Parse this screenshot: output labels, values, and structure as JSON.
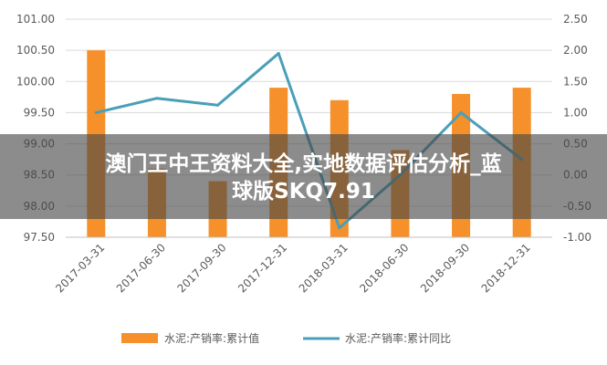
{
  "overlay": {
    "line1": "澳门王中王资料大全,实地数据评估分析_蓝",
    "line2": "球版SKQ7.91"
  },
  "chart_data": {
    "type": "bar",
    "categories": [
      "2017-03-31",
      "2017-06-30",
      "2017-09-30",
      "2017-12-31",
      "2018-03-31",
      "2018-06-30",
      "2018-09-30",
      "2018-12-31"
    ],
    "series": [
      {
        "name": "水泥:产销率:累计值",
        "type": "bar",
        "axis": "left",
        "color": "#f5902a",
        "values": [
          100.5,
          98.6,
          98.4,
          99.9,
          99.7,
          98.9,
          99.8,
          99.9
        ]
      },
      {
        "name": "水泥:产销率:累计同比",
        "type": "line",
        "axis": "right",
        "color": "#4a9fb8",
        "values": [
          1.0,
          1.23,
          1.12,
          1.95,
          -0.85,
          0.0,
          1.0,
          0.25
        ]
      }
    ],
    "y_left": {
      "min": 97.5,
      "max": 101.0,
      "ticks": [
        "97.50",
        "98.00",
        "98.50",
        "99.00",
        "99.50",
        "100.00",
        "100.50",
        "101.00"
      ]
    },
    "y_right": {
      "min": -1.0,
      "max": 2.5,
      "ticks": [
        "-1.00",
        "-0.50",
        "0.00",
        "0.50",
        "1.00",
        "1.50",
        "2.00",
        "2.50"
      ]
    },
    "grid": true,
    "legend": "bottom"
  }
}
